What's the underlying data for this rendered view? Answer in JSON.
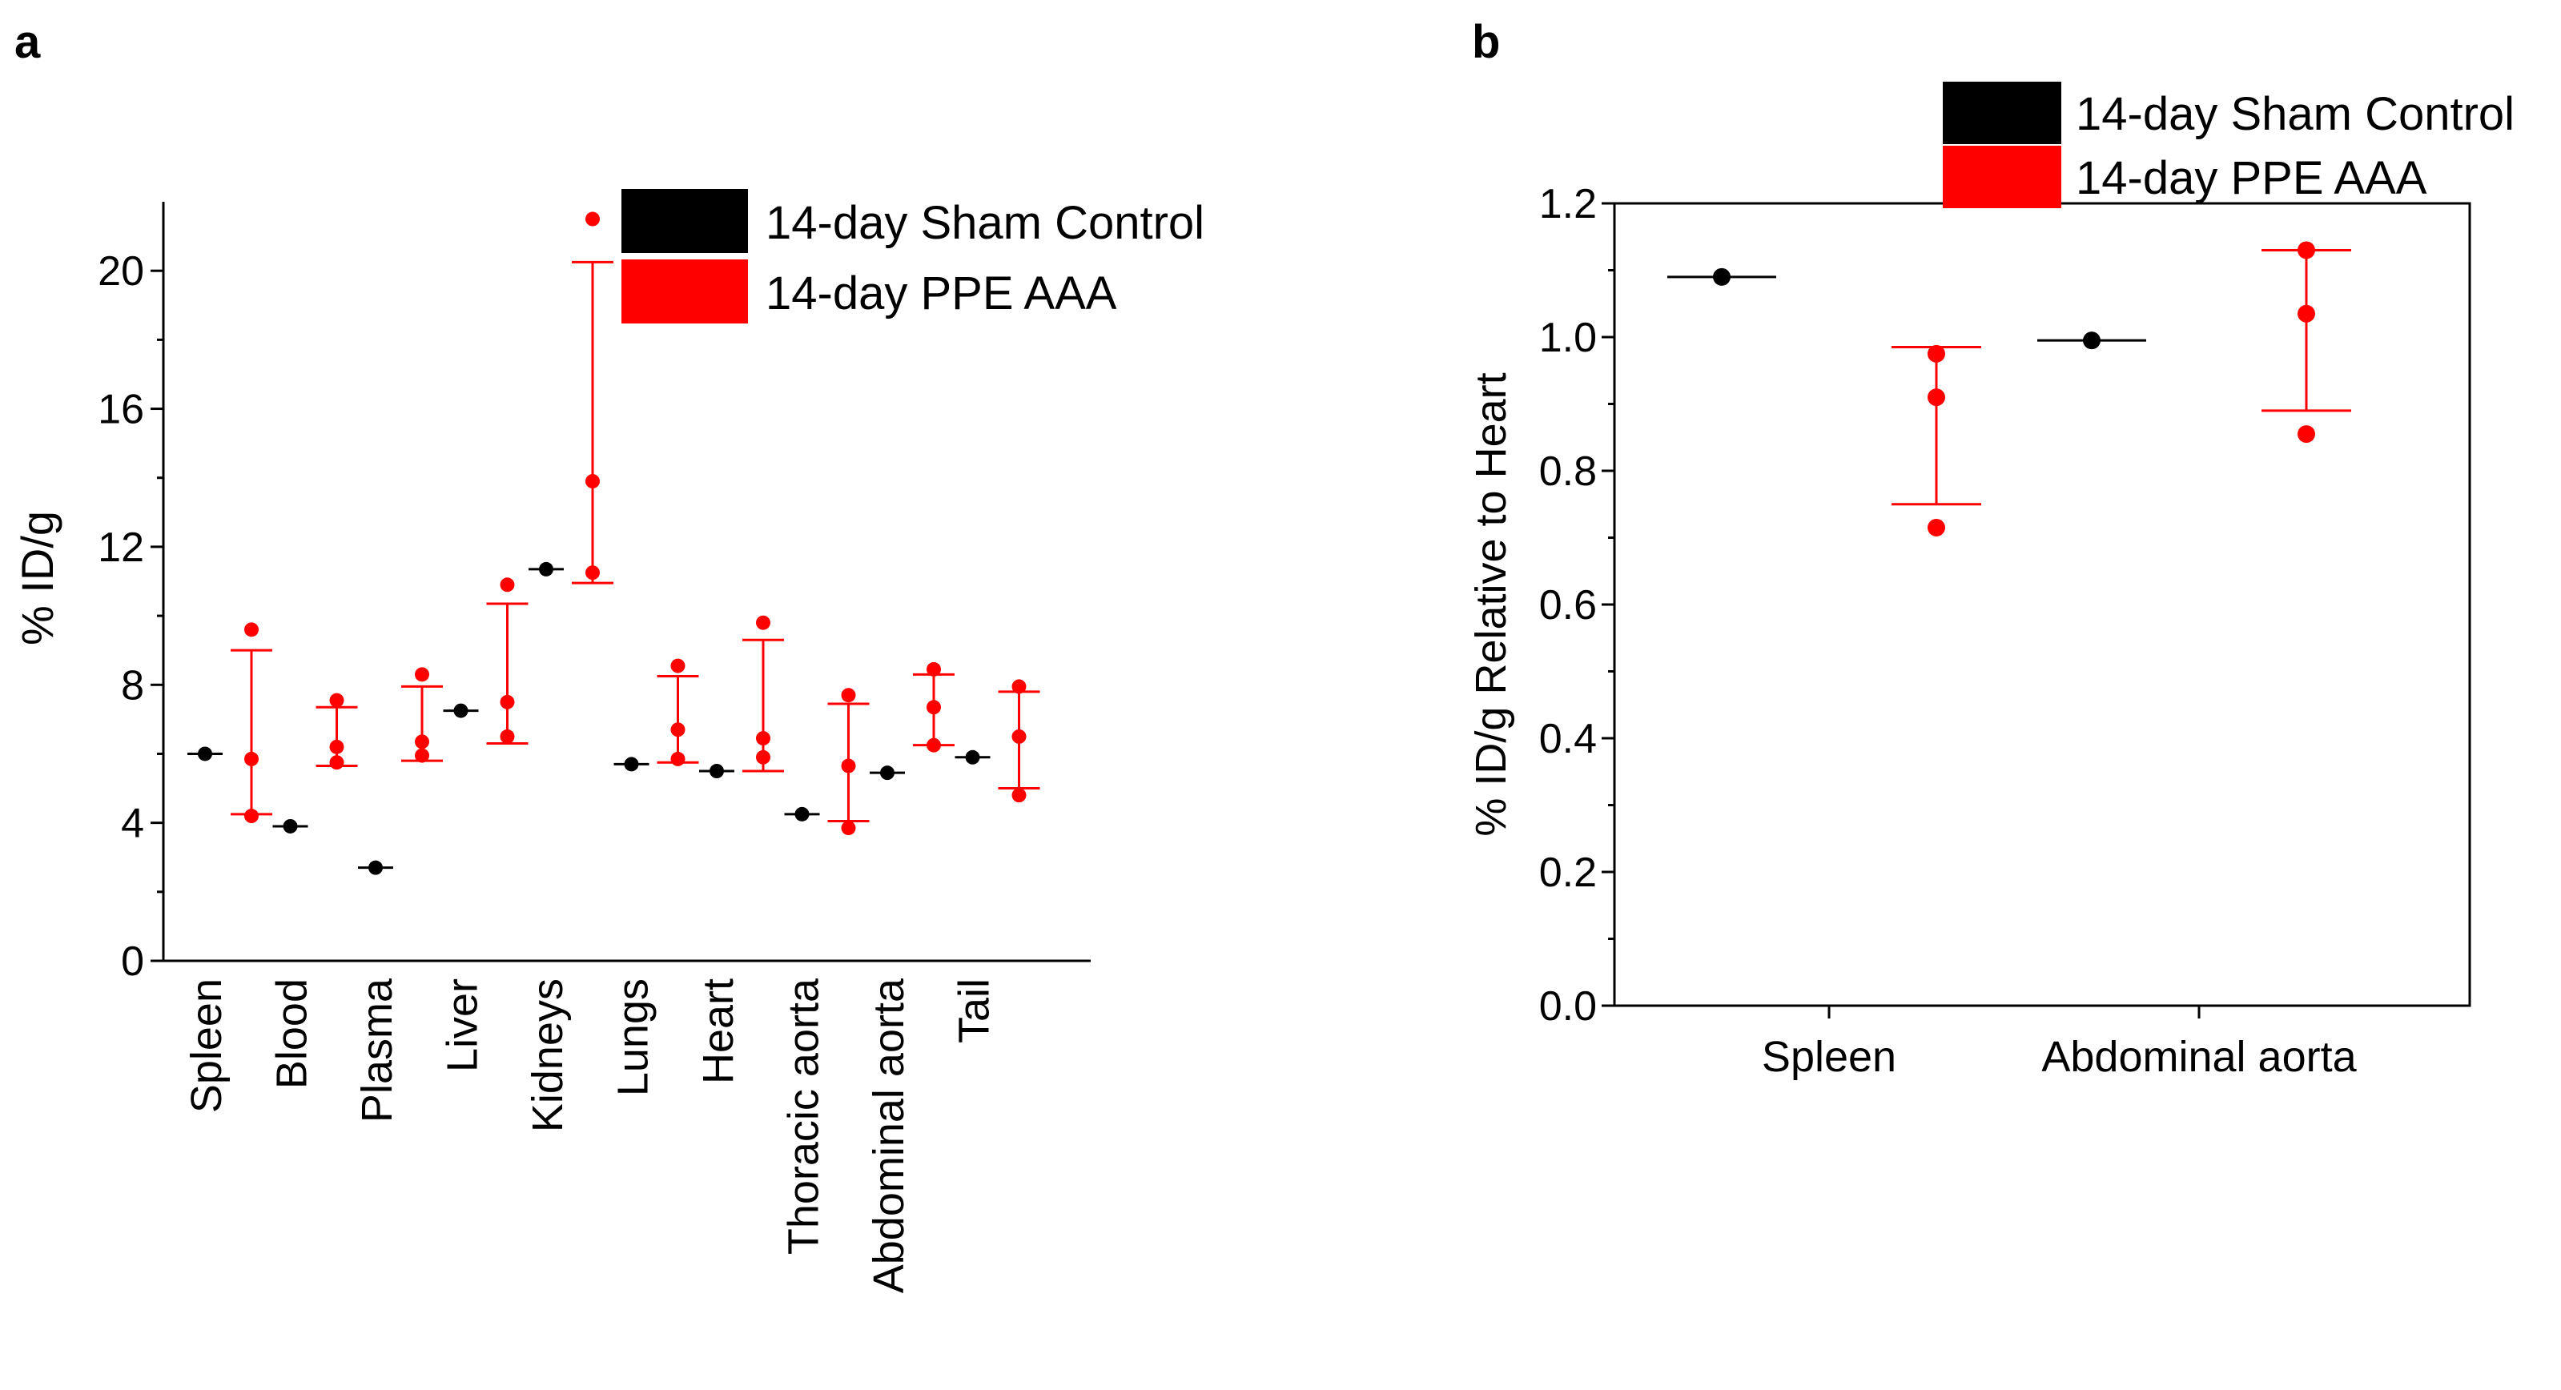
{
  "colors": {
    "sham": "#000000",
    "ppe": "#ff0000"
  },
  "chart_data": [
    {
      "panel_label": "a",
      "type": "scatter",
      "ylabel": "% ID/g",
      "ylim": [
        0,
        22
      ],
      "yticks": [
        0,
        4,
        8,
        12,
        16,
        20
      ],
      "ytick_labels": [
        "0",
        "4",
        "8",
        "12",
        "16",
        "20"
      ],
      "categories": [
        "Spleen",
        "Blood",
        "Plasma",
        "Liver",
        "Kidneys",
        "Lungs",
        "Heart",
        "Thoracic aorta",
        "Abdominal aorta",
        "Tail"
      ],
      "legend": {
        "placement": "top-right",
        "entries": [
          "14-day Sham Control",
          "14-day PPE AAA"
        ]
      },
      "series": [
        {
          "name": "14-day Sham Control",
          "color": "#000000",
          "points": [
            [
              6.0
            ],
            [
              3.9
            ],
            [
              2.7
            ],
            [
              7.25
            ],
            [
              11.35
            ],
            [
              5.7
            ],
            [
              5.5
            ],
            [
              4.25
            ],
            [
              5.45
            ],
            [
              5.9
            ]
          ],
          "mean": [
            6.0,
            3.9,
            2.7,
            7.25,
            11.35,
            5.7,
            5.5,
            4.25,
            5.45,
            5.9
          ],
          "err_low": [
            null,
            null,
            null,
            null,
            null,
            null,
            null,
            null,
            null,
            null
          ],
          "err_high": [
            null,
            null,
            null,
            null,
            null,
            null,
            null,
            null,
            null,
            null
          ]
        },
        {
          "name": "14-day PPE AAA",
          "color": "#ff0000",
          "points": [
            [
              9.6,
              5.85,
              4.2
            ],
            [
              7.55,
              6.2,
              5.75
            ],
            [
              8.3,
              6.35,
              5.95
            ],
            [
              10.9,
              7.5,
              6.5
            ],
            [
              21.5,
              13.9,
              11.25
            ],
            [
              8.55,
              6.7,
              5.85
            ],
            [
              9.8,
              6.45,
              5.9
            ],
            [
              7.7,
              5.65,
              3.85
            ],
            [
              8.45,
              7.35,
              6.25
            ],
            [
              7.95,
              6.5,
              4.8
            ]
          ],
          "mean": [
            6.6,
            6.5,
            6.9,
            8.3,
            15.6,
            7.0,
            7.4,
            5.75,
            7.35,
            6.4
          ],
          "err_low": [
            4.25,
            5.65,
            5.8,
            6.3,
            10.95,
            5.75,
            5.5,
            4.05,
            6.25,
            5.0
          ],
          "err_high": [
            9.0,
            7.35,
            7.95,
            10.35,
            20.25,
            8.25,
            9.3,
            7.45,
            8.3,
            7.8
          ]
        }
      ]
    },
    {
      "panel_label": "b",
      "type": "scatter",
      "ylabel": "% ID/g Relative to Heart",
      "ylim": [
        0,
        1.2
      ],
      "yticks": [
        0,
        0.2,
        0.4,
        0.6,
        0.8,
        1.0,
        1.2
      ],
      "ytick_labels": [
        "0.0",
        "0.2",
        "0.4",
        "0.6",
        "0.8",
        "1.0",
        "1.2"
      ],
      "categories": [
        "Spleen",
        "Abdominal aorta"
      ],
      "legend": {
        "placement": "top-right",
        "entries": [
          "14-day Sham Control",
          "14-day PPE AAA"
        ]
      },
      "series": [
        {
          "name": "14-day Sham Control",
          "color": "#000000",
          "points": [
            [
              1.09
            ],
            [
              0.995
            ]
          ],
          "mean": [
            1.09,
            0.995
          ],
          "err_low": [
            null,
            null
          ],
          "err_high": [
            null,
            null
          ]
        },
        {
          "name": "14-day PPE AAA",
          "color": "#ff0000",
          "points": [
            [
              0.975,
              0.91,
              0.715
            ],
            [
              1.13,
              1.035,
              0.855
            ]
          ],
          "mean": [
            0.87,
            1.01
          ],
          "err_low": [
            0.75,
            0.89
          ],
          "err_high": [
            0.985,
            1.13
          ]
        }
      ]
    }
  ]
}
